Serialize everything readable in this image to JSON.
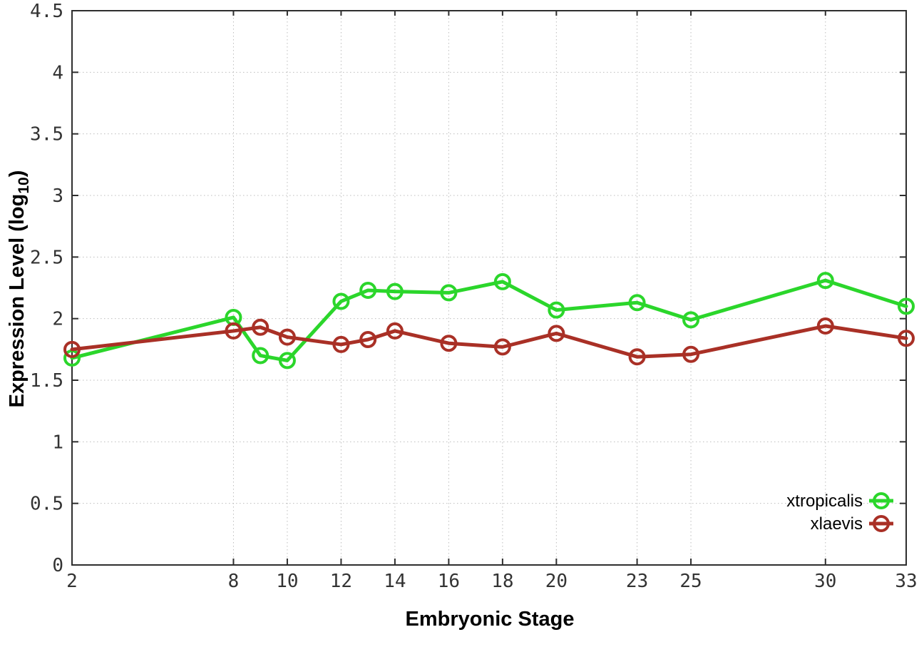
{
  "chart_data": {
    "type": "line",
    "title": "",
    "xlabel": "Embryonic Stage",
    "ylabel": "Expression Level (log10)",
    "ylabel_parts": {
      "text": "Expression Level (log",
      "subscript": "10",
      "close": ")"
    },
    "x": [
      2,
      8,
      9,
      10,
      12,
      13,
      14,
      16,
      18,
      20,
      23,
      25,
      30,
      33
    ],
    "xtick_values": [
      2,
      8,
      10,
      12,
      14,
      16,
      18,
      20,
      23,
      25,
      30,
      33
    ],
    "xtick_labels": [
      "2",
      "8",
      "10",
      "12",
      "14",
      "16",
      "18",
      "20",
      "23",
      "25",
      "30",
      "33"
    ],
    "ytick_values": [
      0,
      0.5,
      1,
      1.5,
      2,
      2.5,
      3,
      3.5,
      4,
      4.5
    ],
    "ytick_labels": [
      "0",
      "0.5",
      "1",
      "1.5",
      "2",
      "2.5",
      "3",
      "3.5",
      "4",
      "4.5"
    ],
    "xlim": [
      2,
      33
    ],
    "ylim": [
      0,
      4.5
    ],
    "grid": true,
    "legend_position": "inside-bottom-right",
    "series": [
      {
        "name": "xtropicalis",
        "color": "#2bd62b",
        "values": [
          1.68,
          2.01,
          1.7,
          1.66,
          2.14,
          2.23,
          2.22,
          2.21,
          2.3,
          2.07,
          2.13,
          1.99,
          2.31,
          2.1
        ]
      },
      {
        "name": "xlaevis",
        "color": "#a93026",
        "values": [
          1.75,
          1.9,
          1.93,
          1.85,
          1.79,
          1.83,
          1.9,
          1.8,
          1.77,
          1.88,
          1.69,
          1.71,
          1.94,
          1.84
        ]
      }
    ]
  },
  "colors": {
    "background": "#ffffff",
    "plot_border": "#2e2e2e",
    "gridline": "#bdbdbd",
    "tick_text": "#333333",
    "axis_label_text": "#000000",
    "series_xtropicalis": "#2bd62b",
    "series_xlaevis": "#a93026"
  }
}
